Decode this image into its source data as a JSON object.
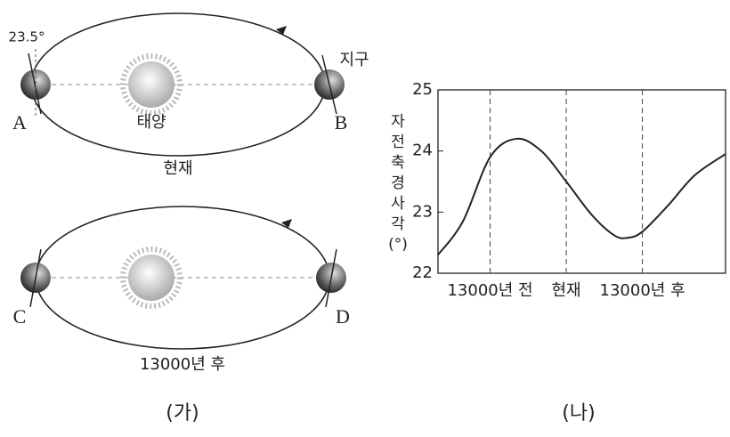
{
  "diagram": {
    "label": "(가)",
    "present": {
      "angle": "23.5°",
      "earth": "지구",
      "left": "A",
      "right": "B",
      "sun": "태양",
      "caption": "현재"
    },
    "future": {
      "left": "C",
      "right": "D",
      "caption": "13000년 후"
    }
  },
  "chart_data": {
    "type": "line",
    "title": "(나)",
    "ylabel": [
      "자",
      "전",
      "축",
      "경",
      "사",
      "각",
      "(°)"
    ],
    "x": [
      -21900,
      -17640,
      -13000,
      -8500,
      -4260,
      0,
      4400,
      8200,
      10500,
      13000,
      17300,
      21900,
      27200
    ],
    "values": [
      22.3,
      22.85,
      23.9,
      24.2,
      24.0,
      23.5,
      22.95,
      22.62,
      22.58,
      22.68,
      23.1,
      23.6,
      23.95
    ],
    "color": "#222222",
    "xlim": [
      -21900,
      27200
    ],
    "xticks": [
      {
        "value": -13000,
        "label": "13000년 전"
      },
      {
        "value": 0,
        "label": "현재"
      },
      {
        "value": 13000,
        "label": "13000년 후"
      }
    ],
    "ylim": [
      22,
      25
    ],
    "yticks": [
      22,
      23,
      24,
      25
    ]
  }
}
